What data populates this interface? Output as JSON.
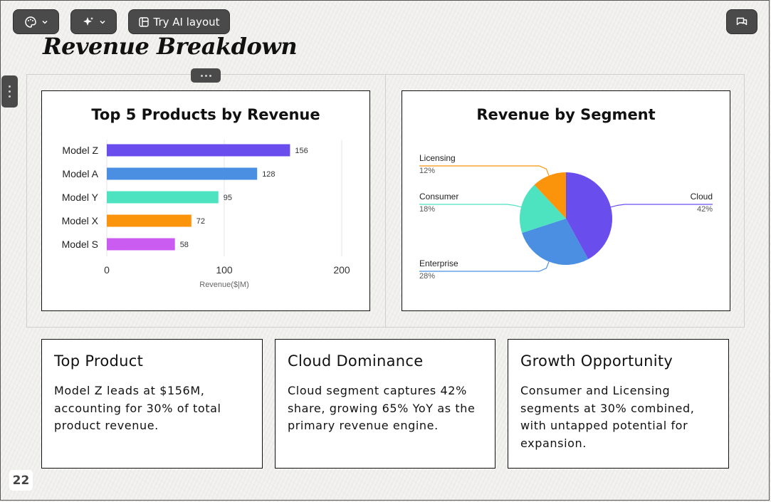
{
  "toolbar": {
    "theme_icon": "palette-icon",
    "ai_icon": "sparkle-icon",
    "layout_icon": "layout-icon",
    "try_ai_label": "Try AI layout",
    "comment_icon": "comment-icon"
  },
  "slide": {
    "title": "Revenue Breakdown",
    "page_number": "22"
  },
  "chart_data": [
    {
      "type": "bar",
      "title": "Top 5 Products by Revenue",
      "categories": [
        "Model Z",
        "Model A",
        "Model Y",
        "Model X",
        "Model S"
      ],
      "values": [
        156,
        128,
        95,
        72,
        58
      ],
      "colors": [
        "#6a4ded",
        "#4a8fe2",
        "#4de3c1",
        "#fb930b",
        "#cb5cf2"
      ],
      "xlabel": "Revenue($|M)",
      "ylabel": "",
      "xlim": [
        0,
        200
      ],
      "xticks": [
        "0",
        "100",
        "200"
      ],
      "orientation": "horizontal",
      "grid": true
    },
    {
      "type": "pie",
      "title": "Revenue by Segment",
      "labels": [
        "Cloud",
        "Enterprise",
        "Consumer",
        "Licensing"
      ],
      "values": [
        42,
        28,
        18,
        12
      ],
      "value_labels": [
        "42%",
        "28%",
        "18%",
        "12%"
      ],
      "colors": [
        "#6a4ded",
        "#4a8fe2",
        "#4de3c1",
        "#fb930b"
      ]
    }
  ],
  "insights": [
    {
      "title": "Top Product",
      "body": "Model Z leads at $156M, accounting for 30% of total product revenue."
    },
    {
      "title": "Cloud Dominance",
      "body": "Cloud segment captures 42% share, growing 65% YoY as the primary revenue engine."
    },
    {
      "title": "Growth Opportunity",
      "body": "Consumer and Licensing segments at 30% combined, with untapped potential for expansion."
    }
  ]
}
